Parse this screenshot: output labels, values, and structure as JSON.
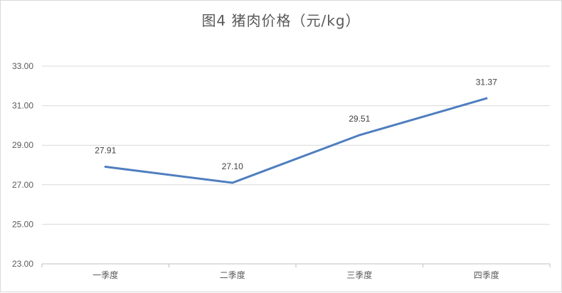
{
  "chart_data": {
    "type": "line",
    "title": "图4  猪肉价格（元/kg）",
    "categories": [
      "一季度",
      "二季度",
      "三季度",
      "四季度"
    ],
    "series": [
      {
        "values": [
          27.91,
          27.1,
          29.51,
          31.37
        ]
      }
    ],
    "data_labels": [
      "27.91",
      "27.10",
      "29.51",
      "31.37"
    ],
    "y_ticks": [
      "23.00",
      "25.00",
      "27.00",
      "29.00",
      "31.00",
      "33.00"
    ],
    "ylim": [
      23,
      33
    ],
    "grid": true,
    "legend": "none",
    "line_color": "#4f7ebf"
  }
}
